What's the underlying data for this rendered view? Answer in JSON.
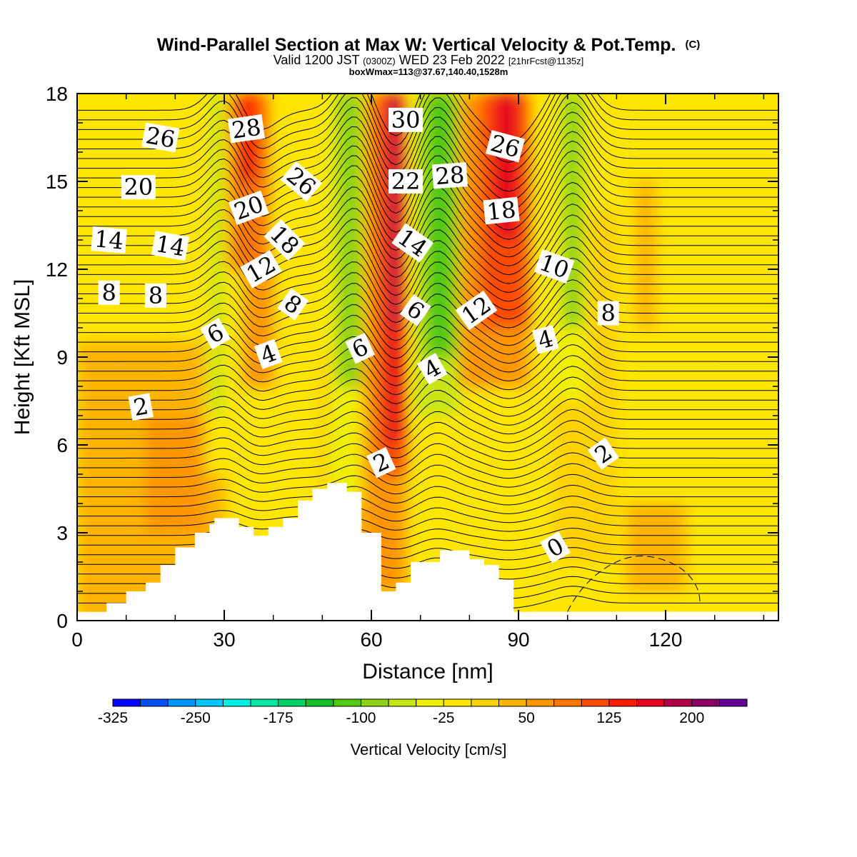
{
  "title": "Wind-Parallel Section at Max W: Vertical Velocity & Pot.Temp.",
  "title_mark": "(C)",
  "subtitle": {
    "part1": "Valid 1200 JST",
    "part2": "(0300Z)",
    "part3": "WED 23 Feb 2022",
    "part4": "[21hrFcst@1135z]"
  },
  "box_info": "boxWmax=113@37.67,140.40,1528m",
  "chart_data": {
    "type": "heatmap",
    "xlabel": "Distance [nm]",
    "ylabel": "Height [Kft MSL]",
    "xlim": [
      0,
      143
    ],
    "ylim": [
      0,
      18
    ],
    "x_ticks": [
      0,
      30,
      60,
      90,
      120
    ],
    "y_ticks": [
      0,
      3,
      6,
      9,
      12,
      15,
      18
    ],
    "colorbar": {
      "label": "Vertical Velocity [cm/s]",
      "levels": [
        -325,
        -300,
        -275,
        -250,
        -225,
        -200,
        -175,
        -150,
        -125,
        -100,
        -75,
        -50,
        -25,
        0,
        25,
        50,
        75,
        100,
        125,
        150,
        175,
        200,
        225,
        250
      ],
      "tick_labels": [
        "-325",
        "-250",
        "-175",
        "-100",
        "-25",
        "50",
        "125",
        "200"
      ],
      "colors": [
        "#0000ff",
        "#0050ff",
        "#0096ff",
        "#00c8ff",
        "#00f0e6",
        "#00e6a0",
        "#00d264",
        "#14be28",
        "#50c814",
        "#8cd214",
        "#c8e614",
        "#f0f000",
        "#ffe600",
        "#ffd200",
        "#ffb400",
        "#ff9600",
        "#ff7800",
        "#ff4b00",
        "#ff1e00",
        "#e6001e",
        "#b40046",
        "#8c0064",
        "#640096"
      ]
    },
    "terrain": [
      [
        0,
        0.3
      ],
      [
        6,
        0.3
      ],
      [
        6,
        0.6
      ],
      [
        10,
        0.6
      ],
      [
        10,
        1.0
      ],
      [
        14,
        1.0
      ],
      [
        14,
        1.3
      ],
      [
        17,
        1.3
      ],
      [
        17,
        1.9
      ],
      [
        20,
        1.9
      ],
      [
        20,
        2.5
      ],
      [
        24,
        2.5
      ],
      [
        24,
        3.0
      ],
      [
        27,
        3.0
      ],
      [
        27,
        3.3
      ],
      [
        28,
        3.3
      ],
      [
        28,
        3.5
      ],
      [
        33,
        3.5
      ],
      [
        33,
        3.2
      ],
      [
        36,
        3.2
      ],
      [
        36,
        2.9
      ],
      [
        39,
        2.9
      ],
      [
        39,
        3.2
      ],
      [
        42,
        3.2
      ],
      [
        42,
        3.5
      ],
      [
        45,
        3.5
      ],
      [
        45,
        4.1
      ],
      [
        48,
        4.1
      ],
      [
        48,
        4.5
      ],
      [
        51,
        4.5
      ],
      [
        51,
        4.7
      ],
      [
        55,
        4.7
      ],
      [
        55,
        4.4
      ],
      [
        58,
        4.4
      ],
      [
        58,
        3.0
      ],
      [
        62,
        3.0
      ],
      [
        62,
        1.0
      ],
      [
        65,
        1.0
      ],
      [
        65,
        1.3
      ],
      [
        68,
        1.3
      ],
      [
        68,
        2.0
      ],
      [
        74,
        2.0
      ],
      [
        74,
        2.4
      ],
      [
        80,
        2.4
      ],
      [
        80,
        2.1
      ],
      [
        83,
        2.1
      ],
      [
        83,
        1.9
      ],
      [
        86,
        1.9
      ],
      [
        86,
        1.4
      ],
      [
        89,
        1.4
      ],
      [
        89,
        0.3
      ],
      [
        92,
        0.3
      ]
    ],
    "w_maxima_cm_s": [
      {
        "x": 35,
        "w": 150
      },
      {
        "x": 65,
        "w": 200
      },
      {
        "x": 88,
        "w": 175
      }
    ],
    "w_minima_cm_s": [
      {
        "x": 28,
        "w": -100
      },
      {
        "x": 56,
        "w": -125
      },
      {
        "x": 74,
        "w": -150
      },
      {
        "x": 101,
        "w": -125
      }
    ],
    "isentrope_labels_C": [
      "30",
      "28",
      "28",
      "26",
      "26",
      "26",
      "22",
      "20",
      "20",
      "18",
      "18",
      "14",
      "14",
      "14",
      "12",
      "12",
      "10",
      "8",
      "8",
      "8",
      "8",
      "6",
      "6",
      "6",
      "4",
      "4",
      "4",
      "2",
      "2",
      "2",
      "0"
    ]
  }
}
